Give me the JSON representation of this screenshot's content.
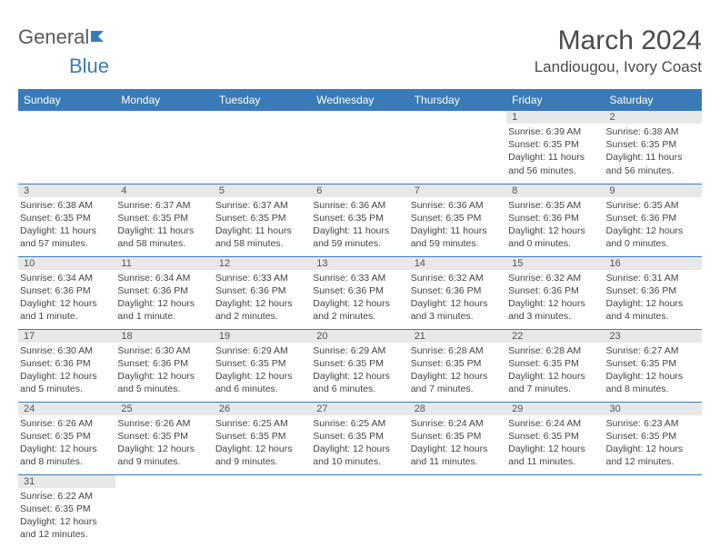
{
  "logo": {
    "text1": "General",
    "text2": "Blue"
  },
  "title": "March 2024",
  "location": "Landiougou, Ivory Coast",
  "weekdays": [
    "Sunday",
    "Monday",
    "Tuesday",
    "Wednesday",
    "Thursday",
    "Friday",
    "Saturday"
  ],
  "weeks": [
    [
      null,
      null,
      null,
      null,
      null,
      {
        "n": "1",
        "sr": "Sunrise: 6:39 AM",
        "ss": "Sunset: 6:35 PM",
        "dl": "Daylight: 11 hours and 56 minutes."
      },
      {
        "n": "2",
        "sr": "Sunrise: 6:38 AM",
        "ss": "Sunset: 6:35 PM",
        "dl": "Daylight: 11 hours and 56 minutes."
      }
    ],
    [
      {
        "n": "3",
        "sr": "Sunrise: 6:38 AM",
        "ss": "Sunset: 6:35 PM",
        "dl": "Daylight: 11 hours and 57 minutes."
      },
      {
        "n": "4",
        "sr": "Sunrise: 6:37 AM",
        "ss": "Sunset: 6:35 PM",
        "dl": "Daylight: 11 hours and 58 minutes."
      },
      {
        "n": "5",
        "sr": "Sunrise: 6:37 AM",
        "ss": "Sunset: 6:35 PM",
        "dl": "Daylight: 11 hours and 58 minutes."
      },
      {
        "n": "6",
        "sr": "Sunrise: 6:36 AM",
        "ss": "Sunset: 6:35 PM",
        "dl": "Daylight: 11 hours and 59 minutes."
      },
      {
        "n": "7",
        "sr": "Sunrise: 6:36 AM",
        "ss": "Sunset: 6:35 PM",
        "dl": "Daylight: 11 hours and 59 minutes."
      },
      {
        "n": "8",
        "sr": "Sunrise: 6:35 AM",
        "ss": "Sunset: 6:36 PM",
        "dl": "Daylight: 12 hours and 0 minutes."
      },
      {
        "n": "9",
        "sr": "Sunrise: 6:35 AM",
        "ss": "Sunset: 6:36 PM",
        "dl": "Daylight: 12 hours and 0 minutes."
      }
    ],
    [
      {
        "n": "10",
        "sr": "Sunrise: 6:34 AM",
        "ss": "Sunset: 6:36 PM",
        "dl": "Daylight: 12 hours and 1 minute."
      },
      {
        "n": "11",
        "sr": "Sunrise: 6:34 AM",
        "ss": "Sunset: 6:36 PM",
        "dl": "Daylight: 12 hours and 1 minute."
      },
      {
        "n": "12",
        "sr": "Sunrise: 6:33 AM",
        "ss": "Sunset: 6:36 PM",
        "dl": "Daylight: 12 hours and 2 minutes."
      },
      {
        "n": "13",
        "sr": "Sunrise: 6:33 AM",
        "ss": "Sunset: 6:36 PM",
        "dl": "Daylight: 12 hours and 2 minutes."
      },
      {
        "n": "14",
        "sr": "Sunrise: 6:32 AM",
        "ss": "Sunset: 6:36 PM",
        "dl": "Daylight: 12 hours and 3 minutes."
      },
      {
        "n": "15",
        "sr": "Sunrise: 6:32 AM",
        "ss": "Sunset: 6:36 PM",
        "dl": "Daylight: 12 hours and 3 minutes."
      },
      {
        "n": "16",
        "sr": "Sunrise: 6:31 AM",
        "ss": "Sunset: 6:36 PM",
        "dl": "Daylight: 12 hours and 4 minutes."
      }
    ],
    [
      {
        "n": "17",
        "sr": "Sunrise: 6:30 AM",
        "ss": "Sunset: 6:36 PM",
        "dl": "Daylight: 12 hours and 5 minutes."
      },
      {
        "n": "18",
        "sr": "Sunrise: 6:30 AM",
        "ss": "Sunset: 6:36 PM",
        "dl": "Daylight: 12 hours and 5 minutes."
      },
      {
        "n": "19",
        "sr": "Sunrise: 6:29 AM",
        "ss": "Sunset: 6:35 PM",
        "dl": "Daylight: 12 hours and 6 minutes."
      },
      {
        "n": "20",
        "sr": "Sunrise: 6:29 AM",
        "ss": "Sunset: 6:35 PM",
        "dl": "Daylight: 12 hours and 6 minutes."
      },
      {
        "n": "21",
        "sr": "Sunrise: 6:28 AM",
        "ss": "Sunset: 6:35 PM",
        "dl": "Daylight: 12 hours and 7 minutes."
      },
      {
        "n": "22",
        "sr": "Sunrise: 6:28 AM",
        "ss": "Sunset: 6:35 PM",
        "dl": "Daylight: 12 hours and 7 minutes."
      },
      {
        "n": "23",
        "sr": "Sunrise: 6:27 AM",
        "ss": "Sunset: 6:35 PM",
        "dl": "Daylight: 12 hours and 8 minutes."
      }
    ],
    [
      {
        "n": "24",
        "sr": "Sunrise: 6:26 AM",
        "ss": "Sunset: 6:35 PM",
        "dl": "Daylight: 12 hours and 8 minutes."
      },
      {
        "n": "25",
        "sr": "Sunrise: 6:26 AM",
        "ss": "Sunset: 6:35 PM",
        "dl": "Daylight: 12 hours and 9 minutes."
      },
      {
        "n": "26",
        "sr": "Sunrise: 6:25 AM",
        "ss": "Sunset: 6:35 PM",
        "dl": "Daylight: 12 hours and 9 minutes."
      },
      {
        "n": "27",
        "sr": "Sunrise: 6:25 AM",
        "ss": "Sunset: 6:35 PM",
        "dl": "Daylight: 12 hours and 10 minutes."
      },
      {
        "n": "28",
        "sr": "Sunrise: 6:24 AM",
        "ss": "Sunset: 6:35 PM",
        "dl": "Daylight: 12 hours and 11 minutes."
      },
      {
        "n": "29",
        "sr": "Sunrise: 6:24 AM",
        "ss": "Sunset: 6:35 PM",
        "dl": "Daylight: 12 hours and 11 minutes."
      },
      {
        "n": "30",
        "sr": "Sunrise: 6:23 AM",
        "ss": "Sunset: 6:35 PM",
        "dl": "Daylight: 12 hours and 12 minutes."
      }
    ],
    [
      {
        "n": "31",
        "sr": "Sunrise: 6:22 AM",
        "ss": "Sunset: 6:35 PM",
        "dl": "Daylight: 12 hours and 12 minutes."
      },
      null,
      null,
      null,
      null,
      null,
      null
    ]
  ],
  "colors": {
    "header_bg": "#3a7ab8",
    "daynum_bg": "#e8e8e8",
    "border": "#3a7ab8"
  }
}
